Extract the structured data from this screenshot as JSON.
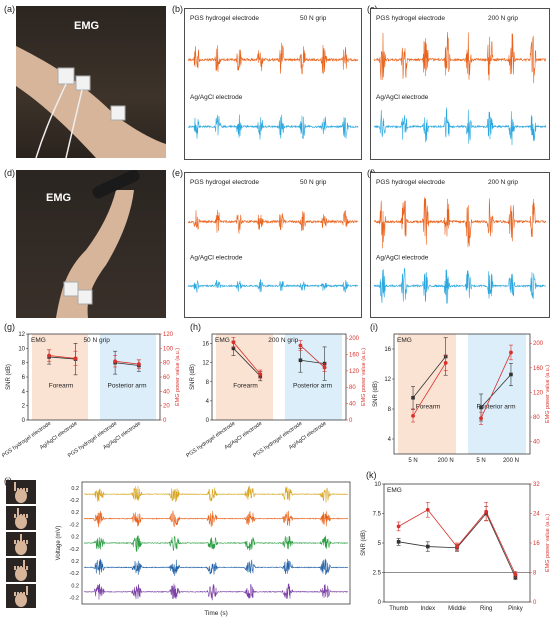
{
  "panels": {
    "a": "(a)",
    "b": "(b)",
    "c": "(c)",
    "d": "(d)",
    "e": "(e)",
    "f": "(f)",
    "g": "(g)",
    "h": "(h)",
    "i": "(i)",
    "j": "(j)",
    "k": "(k)"
  },
  "photo_a": {
    "tag": "EMG"
  },
  "photo_d": {
    "tag": "EMG"
  },
  "colors": {
    "pgs": "#e8641e",
    "agagcl": "#2aa7de",
    "snr": "#333333",
    "power": "#d9312b",
    "forearm_bg": "#fbe3d4",
    "posterior_bg": "#dceefa"
  },
  "signals": {
    "b": {
      "top_label": "PGS hydrogel electrode",
      "grip": "50 N grip",
      "bottom_label": "Ag/AgCl electrode",
      "bursts": 8,
      "top_amp": 0.55,
      "bottom_amp": 0.55
    },
    "c": {
      "top_label": "PGS hydrogel electrode",
      "grip": "200 N grip",
      "bottom_label": "Ag/AgCl electrode",
      "bursts": 8,
      "top_amp": 0.95,
      "bottom_amp": 0.85
    },
    "e": {
      "top_label": "PGS hydrogel electrode",
      "grip": "50 N grip",
      "bottom_label": "Ag/AgCl electrode",
      "bursts": 8,
      "top_amp": 0.4,
      "bottom_amp": 0.3
    },
    "f": {
      "top_label": "PGS hydrogel electrode",
      "grip": "200 N grip",
      "bottom_label": "Ag/AgCl electrode",
      "bursts": 8,
      "top_amp": 0.9,
      "bottom_amp": 0.85
    }
  },
  "chart_data": [
    {
      "panel": "g",
      "type": "line",
      "inset": "EMG",
      "grip": "50 N grip",
      "ylabel": "SNR (dB)",
      "ylabel_right": "EMG power value (a.u.)",
      "yticks": [
        0,
        2,
        4,
        6,
        8,
        10,
        12
      ],
      "ylim": [
        0,
        12
      ],
      "yticks_right": [
        0,
        20,
        40,
        60,
        80,
        100,
        120
      ],
      "ylim_right": [
        0,
        120
      ],
      "categories": [
        "PGS hydrogel electrode",
        "Ag/AgCl electrode",
        "PGS hydrogel electrode",
        "Ag/AgCl electrode"
      ],
      "regions": [
        "Forearm",
        "Posterior arm"
      ],
      "series": [
        {
          "axis": "left",
          "values": [
            8.8,
            8.5,
            8.0,
            7.6
          ],
          "err": [
            1.0,
            2.2,
            1.6,
            0.8
          ]
        },
        {
          "axis": "right",
          "values": [
            90,
            86,
            82,
            78
          ],
          "err": [
            8,
            10,
            8,
            6
          ]
        }
      ]
    },
    {
      "panel": "h",
      "type": "line",
      "inset": "EMG",
      "grip": "200 N grip",
      "ylabel": "SNR (dB)",
      "ylabel_right": "EMG power value (a.u.)",
      "yticks": [
        0,
        4,
        8,
        12,
        16
      ],
      "ylim": [
        0,
        18
      ],
      "yticks_right": [
        0,
        40,
        80,
        120,
        160,
        200
      ],
      "ylim_right": [
        0,
        210
      ],
      "categories": [
        "PGS hydrogel electrode",
        "Ag/AgCl electrode",
        "PGS hydrogel electrode",
        "Ag/AgCl electrode"
      ],
      "regions": [
        "Forearm",
        "Posterior arm"
      ],
      "series": [
        {
          "axis": "left",
          "values": [
            15.0,
            9.2,
            12.5,
            11.8
          ],
          "err": [
            1.5,
            1.0,
            2.5,
            3.5
          ]
        },
        {
          "axis": "right",
          "values": [
            190,
            112,
            182,
            128
          ],
          "err": [
            12,
            10,
            12,
            10
          ]
        }
      ]
    },
    {
      "panel": "i",
      "type": "line",
      "inset": "EMG",
      "ylabel": "SNR (dB)",
      "ylabel_right": "EMG power value (a.u.)",
      "yticks": [
        4,
        8,
        12,
        16
      ],
      "ylim": [
        2,
        18
      ],
      "yticks_right": [
        40,
        80,
        120,
        160,
        200
      ],
      "ylim_right": [
        20,
        215
      ],
      "categories": [
        "5 N",
        "200 N",
        "5 N",
        "200 N"
      ],
      "regions": [
        "Forearm",
        "Posterior arm"
      ],
      "series": [
        {
          "axis": "left",
          "values": [
            9.5,
            15.0,
            8.2,
            12.6
          ],
          "err": [
            1.5,
            2.5,
            1.8,
            1.5
          ]
        },
        {
          "axis": "right",
          "values": [
            82,
            168,
            78,
            185
          ],
          "err": [
            10,
            12,
            10,
            12
          ]
        }
      ]
    },
    {
      "panel": "k",
      "type": "line",
      "inset": "EMG",
      "ylabel": "SNR (dB)",
      "ylabel_right": "EMG power value (a.u.)",
      "yticks": [
        0.0,
        2.5,
        5.0,
        7.5,
        10.0
      ],
      "ylim": [
        0,
        10
      ],
      "yticks_right": [
        0,
        8,
        16,
        24,
        32
      ],
      "ylim_right": [
        0,
        32
      ],
      "categories": [
        "Thumb",
        "Index",
        "Middle",
        "Ring",
        "Pinky"
      ],
      "series": [
        {
          "axis": "left",
          "values": [
            5.1,
            4.7,
            4.6,
            7.5,
            2.1
          ],
          "err": [
            0.3,
            0.4,
            0.3,
            0.6,
            0.2
          ]
        },
        {
          "axis": "right",
          "values": [
            20.5,
            25.0,
            15.0,
            24.5,
            7.5
          ],
          "err": [
            1.2,
            2.0,
            1.0,
            2.5,
            0.8
          ]
        }
      ]
    }
  ],
  "finger_traces": {
    "ylabel": "Voltage (mV)",
    "xlabel": "Time (s)",
    "tick_labels": [
      "0.2",
      "-0.2",
      "0.2",
      "-0.2",
      "0.2",
      "-0.2",
      "0.2",
      "-0.2",
      "0.2",
      "-0.2"
    ],
    "colors": [
      "#d7a624",
      "#e8641e",
      "#2e9e44",
      "#2563a8",
      "#7a3fa3"
    ],
    "bursts": 7
  }
}
